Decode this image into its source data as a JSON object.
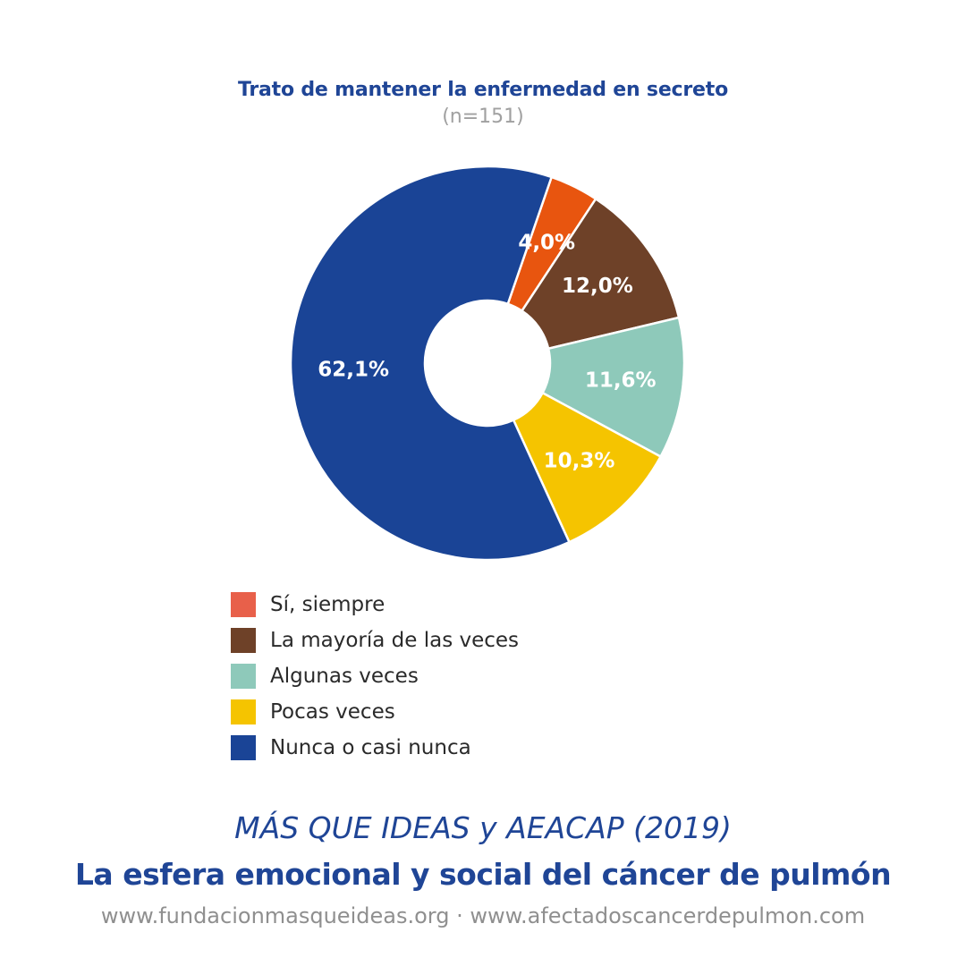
{
  "chart_data": {
    "type": "pie",
    "donut": true,
    "title": "Trato de mantener la enfermedad en secreto",
    "subtitle": "(n=151)",
    "slices": [
      {
        "name": "Sí, siempre",
        "value": 4.0,
        "label": "4,0%",
        "color": "#e8550f",
        "legend_color": "#e8604a"
      },
      {
        "name": "La mayoría de las veces",
        "value": 12.0,
        "label": "12,0%",
        "color": "#6e4128"
      },
      {
        "name": "Algunas veces",
        "value": 11.6,
        "label": "11,6%",
        "color": "#8ec9ba"
      },
      {
        "name": "Pocas veces",
        "value": 10.3,
        "label": "10,3%",
        "color": "#f5c400"
      },
      {
        "name": "Nunca o casi nunca",
        "value": 62.1,
        "label": "62,1%",
        "color": "#1a4496"
      }
    ],
    "start_angle_deg": 19,
    "direction": "clockwise",
    "legend_position": "bottom"
  },
  "footer": {
    "source": "MÁS QUE IDEAS y AEACAP (2019)",
    "title": "La esfera emocional y social del cáncer de pulmón",
    "urls": "www.fundacionmasqueideas.org · www.afectadoscancerdepulmon.com"
  }
}
